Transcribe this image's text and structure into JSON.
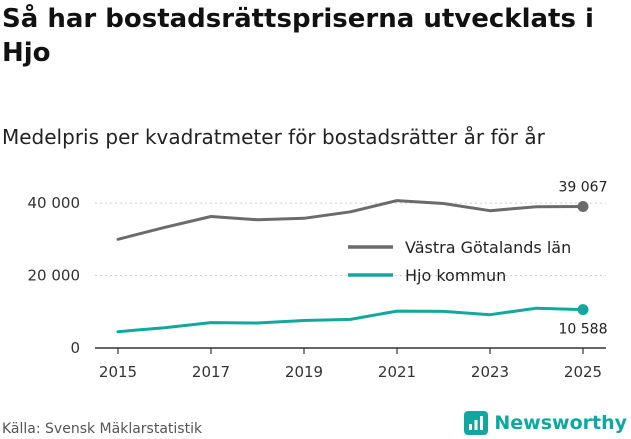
{
  "title": "Så har bostadsrättspriserna utvecklats i Hjo",
  "subtitle": "Medelpris per kvadratmeter för bostadsrätter år för år",
  "source": "Källa: Svensk Mäklarstatistik",
  "brand": {
    "name": "Newsworthy",
    "icon": "bar-chart-logo-icon",
    "color": "#0fa8a0"
  },
  "chart_data": {
    "type": "line",
    "title": "Så har bostadsrättspriserna utvecklats i Hjo",
    "subtitle": "Medelpris per kvadratmeter för bostadsrätter år för år",
    "xlabel": "",
    "ylabel": "",
    "x": [
      2015,
      2016,
      2017,
      2018,
      2019,
      2020,
      2021,
      2022,
      2023,
      2024,
      2025
    ],
    "xticks": [
      "2015",
      "2017",
      "2019",
      "2021",
      "2023",
      "2025"
    ],
    "yticks": [
      0,
      20000,
      40000
    ],
    "ytick_labels": [
      "0",
      "20 000",
      "40 000"
    ],
    "ylim": [
      0,
      45000
    ],
    "legend_position": "center-right",
    "series": [
      {
        "name": "Västra Götalands län",
        "color": "#6b6b6b",
        "values": [
          30000,
          33300,
          36300,
          35400,
          35800,
          37600,
          40700,
          39900,
          37900,
          39000,
          39067
        ],
        "end_label": "39 067"
      },
      {
        "name": "Hjo kommun",
        "color": "#11a89e",
        "values": [
          4500,
          5600,
          7000,
          6900,
          7600,
          7900,
          10200,
          10100,
          9200,
          11000,
          10588
        ],
        "end_label": "10 588"
      }
    ]
  }
}
